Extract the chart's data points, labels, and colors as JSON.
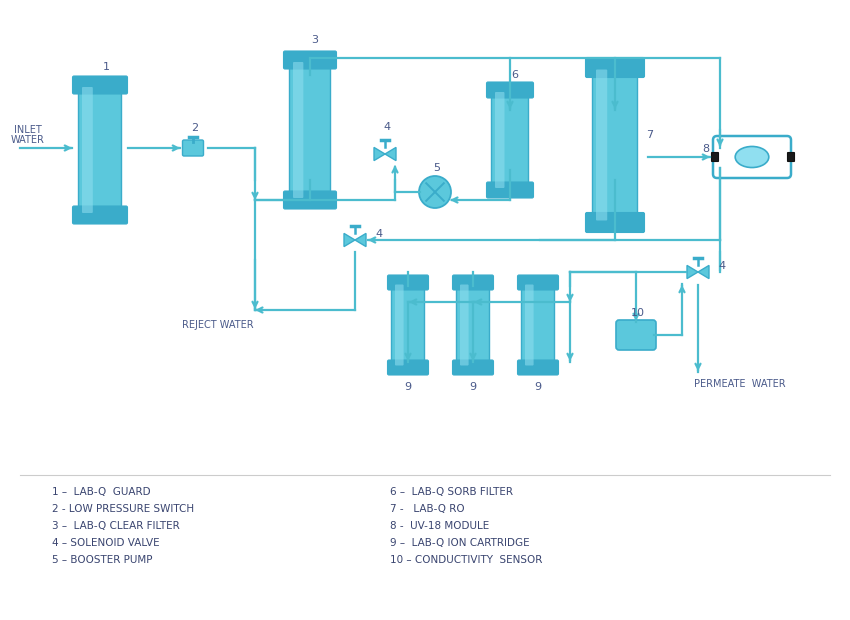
{
  "bg_color": "#ffffff",
  "cyan": "#5bc8dc",
  "cyan_dark": "#3aacca",
  "cyan_light": "#90dff0",
  "cyan_mid": "#4bbcce",
  "line_color": "#4bbcce",
  "text_color": "#4a5a8a",
  "legend_items_left": [
    "1 –  LAB-Q  GUARD",
    "2 - LOW PRESSURE SWITCH",
    "3 –  LAB-Q CLEAR FILTER",
    "4 – SOLENOID VALVE",
    "5 – BOOSTER PUMP"
  ],
  "legend_items_right": [
    "6 –  LAB-Q SORB FILTER",
    "7 -   LAB-Q RO",
    "8 -  UV-18 MODULE",
    "9 –  LAB-Q ION CARTRIDGE",
    "10 – CONDUCTIVITY  SENSOR"
  ]
}
